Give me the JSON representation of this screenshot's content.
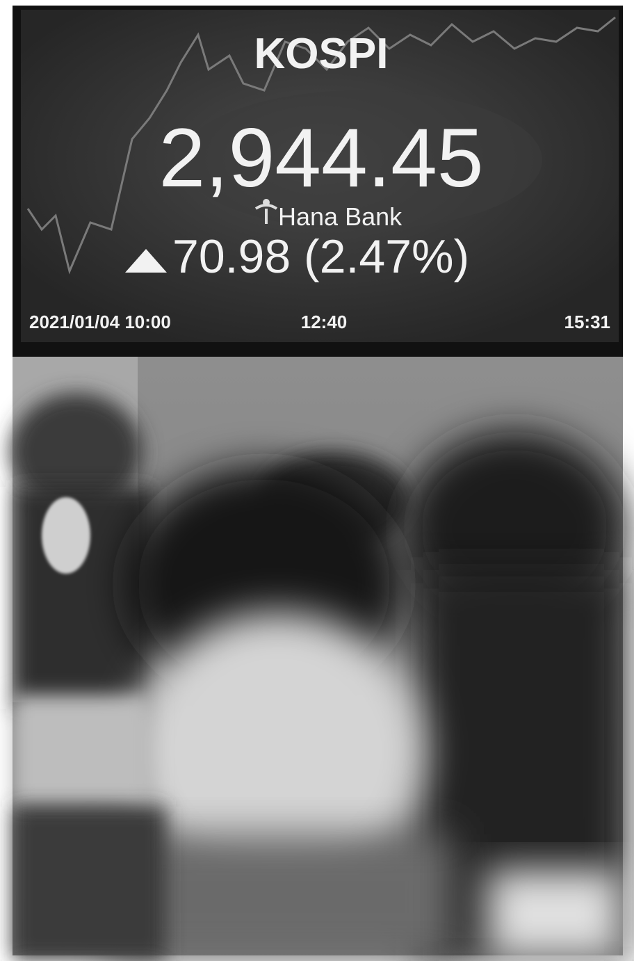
{
  "board": {
    "title": "KOSPI",
    "index": "2,944.45",
    "sponsor": "Hana Bank",
    "change": "70.98 (2.47%)",
    "time_labels": [
      "2021/01/04 10:00",
      "12:40",
      "15:31"
    ]
  }
}
